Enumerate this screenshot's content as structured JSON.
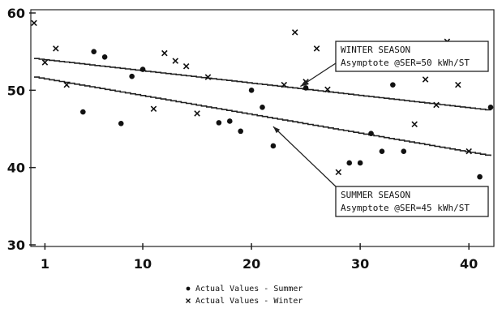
{
  "chart_data": {
    "type": "scatter",
    "x_ticks": [
      1,
      10,
      20,
      30,
      40
    ],
    "y_ticks": [
      30,
      40,
      50,
      60
    ],
    "xlim": [
      0,
      42
    ],
    "ylim": [
      30,
      60
    ],
    "grid": false,
    "series": [
      {
        "name": "Actual Values - Summer",
        "marker": "dot",
        "points": [
          [
            4.5,
            47.2
          ],
          [
            5.5,
            55.0
          ],
          [
            6.5,
            54.3
          ],
          [
            8,
            45.7
          ],
          [
            9,
            51.8
          ],
          [
            10,
            52.7
          ],
          [
            17,
            45.8
          ],
          [
            18,
            46.0
          ],
          [
            19,
            44.7
          ],
          [
            20,
            50.0
          ],
          [
            21,
            47.8
          ],
          [
            22,
            42.8
          ],
          [
            25,
            50.3
          ],
          [
            29,
            40.6
          ],
          [
            30,
            40.6
          ],
          [
            31,
            44.4
          ],
          [
            32,
            42.1
          ],
          [
            33,
            50.7
          ],
          [
            34,
            42.1
          ],
          [
            41,
            38.8
          ],
          [
            42,
            47.8
          ]
        ]
      },
      {
        "name": "Actual Values - Winter",
        "marker": "x",
        "points": [
          [
            0,
            58.7
          ],
          [
            1,
            53.6
          ],
          [
            2,
            55.4
          ],
          [
            3,
            50.7
          ],
          [
            11,
            47.6
          ],
          [
            12,
            54.8
          ],
          [
            13,
            53.8
          ],
          [
            14,
            53.1
          ],
          [
            15,
            47.0
          ],
          [
            16,
            51.7
          ],
          [
            23,
            50.7
          ],
          [
            24,
            57.5
          ],
          [
            25,
            51.1
          ],
          [
            26,
            55.4
          ],
          [
            27,
            50.1
          ],
          [
            28,
            39.4
          ],
          [
            35,
            45.6
          ],
          [
            36,
            51.4
          ],
          [
            37,
            48.1
          ],
          [
            38,
            56.3
          ],
          [
            39,
            50.7
          ],
          [
            40,
            42.1
          ]
        ]
      }
    ],
    "fitted_lines": [
      {
        "name": "Winter fit",
        "start": [
          0,
          54.1
        ],
        "end": [
          42,
          47.4
        ]
      },
      {
        "name": "Summer fit",
        "start": [
          0,
          51.7
        ],
        "end": [
          42,
          41.5
        ]
      }
    ],
    "annotations": [
      {
        "title": "WINTER SEASON",
        "text": "Asymptote @SER=50 kWh/ST",
        "points_to": [
          24.5,
          50.5
        ]
      },
      {
        "title": "SUMMER SEASON",
        "text": "Asymptote @SER=45 kWh/ST",
        "points_to": [
          22,
          45.3
        ]
      }
    ],
    "legend_position": "bottom-center"
  }
}
